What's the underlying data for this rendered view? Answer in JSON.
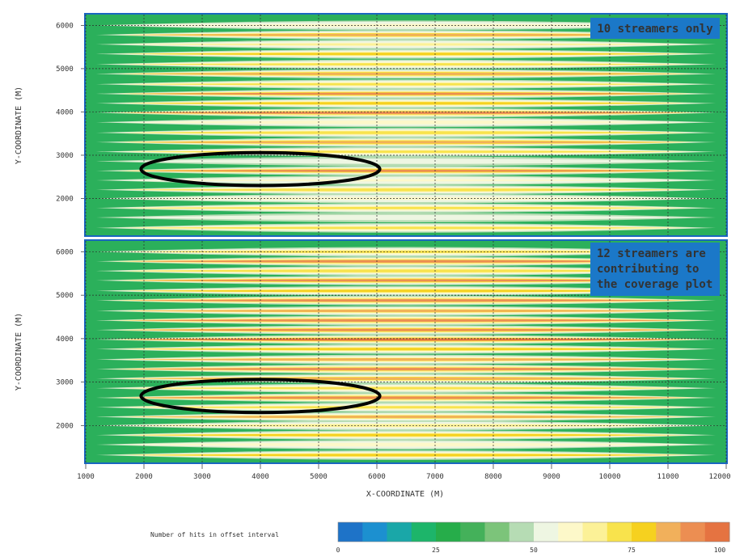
{
  "chart_data": [
    {
      "type": "heatmap",
      "title": "",
      "annotation": "10 streamers only",
      "xlabel": "X-COORDINATE (M)",
      "ylabel": "Y-COORDINATE (M)",
      "xlim": [
        1000,
        12000
      ],
      "ylim": [
        1150,
        6250
      ],
      "x_ticks": [
        1000,
        2000,
        3000,
        4000,
        5000,
        6000,
        7000,
        8000,
        9000,
        10000,
        11000,
        12000
      ],
      "y_ticks": [
        2000,
        3000,
        4000,
        5000,
        6000
      ],
      "grid": true,
      "highlight_ellipse": {
        "cx": 4000,
        "cy": 2680,
        "rx": 2050,
        "ry": 380
      },
      "rows": [
        {
          "y": 1320,
          "peak": 70
        },
        {
          "y": 1560,
          "peak": 55
        },
        {
          "y": 1780,
          "peak": 72
        },
        {
          "y": 2000,
          "peak": 60
        },
        {
          "y": 2200,
          "peak": 74
        },
        {
          "y": 2420,
          "peak": 58
        },
        {
          "y": 2640,
          "peak": 88
        },
        {
          "y": 2860,
          "peak": 55
        },
        {
          "y": 3080,
          "peak": 70
        },
        {
          "y": 3300,
          "peak": 86
        },
        {
          "y": 3520,
          "peak": 74
        },
        {
          "y": 3760,
          "peak": 62
        },
        {
          "y": 3980,
          "peak": 92
        },
        {
          "y": 4200,
          "peak": 80
        },
        {
          "y": 4420,
          "peak": 88
        },
        {
          "y": 4640,
          "peak": 72
        },
        {
          "y": 4880,
          "peak": 86
        },
        {
          "y": 5100,
          "peak": 70
        },
        {
          "y": 5340,
          "peak": 80
        },
        {
          "y": 5560,
          "peak": 64
        },
        {
          "y": 5780,
          "peak": 84
        },
        {
          "y": 6000,
          "peak": 60
        }
      ]
    },
    {
      "type": "heatmap",
      "title": "",
      "annotation": "12 streamers are contributing to the coverage plot",
      "xlabel": "X-COORDINATE (M)",
      "ylabel": "Y-COORDINATE (M)",
      "xlim": [
        1000,
        12000
      ],
      "ylim": [
        1150,
        6250
      ],
      "x_ticks": [
        1000,
        2000,
        3000,
        4000,
        5000,
        6000,
        7000,
        8000,
        9000,
        10000,
        11000,
        12000
      ],
      "y_ticks": [
        2000,
        3000,
        4000,
        5000,
        6000
      ],
      "grid": true,
      "highlight_ellipse": {
        "cx": 4000,
        "cy": 2680,
        "rx": 2050,
        "ry": 380
      },
      "rows": [
        {
          "y": 1320,
          "peak": 75
        },
        {
          "y": 1560,
          "peak": 62
        },
        {
          "y": 1780,
          "peak": 80
        },
        {
          "y": 2000,
          "peak": 68
        },
        {
          "y": 2200,
          "peak": 82
        },
        {
          "y": 2420,
          "peak": 70
        },
        {
          "y": 2640,
          "peak": 92
        },
        {
          "y": 2860,
          "peak": 72
        },
        {
          "y": 3080,
          "peak": 84
        },
        {
          "y": 3300,
          "peak": 92
        },
        {
          "y": 3520,
          "peak": 82
        },
        {
          "y": 3760,
          "peak": 76
        },
        {
          "y": 3980,
          "peak": 95
        },
        {
          "y": 4200,
          "peak": 88
        },
        {
          "y": 4420,
          "peak": 92
        },
        {
          "y": 4640,
          "peak": 82
        },
        {
          "y": 4880,
          "peak": 90
        },
        {
          "y": 5100,
          "peak": 78
        },
        {
          "y": 5340,
          "peak": 88
        },
        {
          "y": 5560,
          "peak": 74
        },
        {
          "y": 5780,
          "peak": 90
        },
        {
          "y": 6000,
          "peak": 70
        }
      ]
    }
  ],
  "colorbar": {
    "label": "Number of hits in offset interval",
    "ticks": [
      0,
      25,
      50,
      75,
      100
    ],
    "colors": [
      "#1e73c8",
      "#1c90d0",
      "#1aa7a8",
      "#1db56a",
      "#26ad4a",
      "#44b15a",
      "#7cc47a",
      "#b6dcb4",
      "#eef6e2",
      "#fdf8c9",
      "#fcf197",
      "#f8e34c",
      "#f6d11f",
      "#f1b05b",
      "#ec8e52",
      "#e57341"
    ]
  },
  "colors": {
    "plot_border": "#1a66c0",
    "callout_bg": "#1b78c8",
    "ellipse": "#000000"
  }
}
